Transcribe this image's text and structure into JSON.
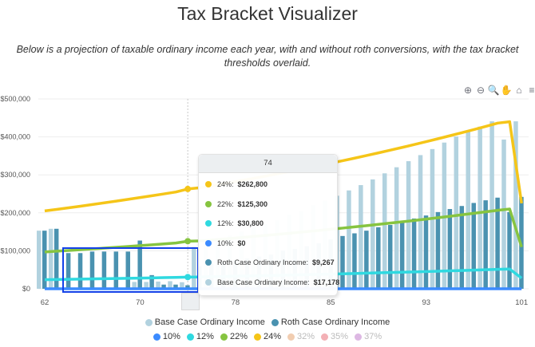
{
  "title": "Tax Bracket Visualizer",
  "subtitle": "Below is a projection of taxable ordinary income each year, with and without roth conversions, with the tax bracket thresholds overlaid.",
  "toolbar": [
    {
      "name": "zoom-in-icon",
      "glyph": "⊕"
    },
    {
      "name": "zoom-out-icon",
      "glyph": "⊖"
    },
    {
      "name": "selection-zoom-icon",
      "glyph": "🔍"
    },
    {
      "name": "pan-icon",
      "glyph": "✋"
    },
    {
      "name": "reset-home-icon",
      "glyph": "⌂"
    },
    {
      "name": "menu-icon",
      "glyph": "≡"
    }
  ],
  "chart_data": {
    "type": "bar+line",
    "ylim": [
      0,
      500000
    ],
    "yticks": [
      "$0",
      "$100,000",
      "$200,000",
      "$300,000",
      "$400,000",
      "$500,000"
    ],
    "ytick_values": [
      0,
      100000,
      200000,
      300000,
      400000,
      500000
    ],
    "xtick_labels": [
      {
        "index": 0,
        "label": "62"
      },
      {
        "index": 8,
        "label": "70"
      },
      {
        "index": 12,
        "label": "74"
      },
      {
        "index": 16,
        "label": "78"
      },
      {
        "index": 24,
        "label": "85"
      },
      {
        "index": 32,
        "label": "93"
      },
      {
        "index": 40,
        "label": "101"
      }
    ],
    "grid": true,
    "bar_series": [
      {
        "name": "Base Case Ordinary Income",
        "color": "#b2d2df",
        "values": [
          153000,
          158000,
          0,
          0,
          0,
          0,
          0,
          0,
          18000,
          18000,
          19000,
          20000,
          17178,
          110000,
          120000,
          130000,
          140000,
          150000,
          160000,
          170000,
          180000,
          195000,
          205000,
          220000,
          232000,
          245000,
          259000,
          273000,
          288000,
          304000,
          320000,
          336000,
          352000,
          368000,
          385000,
          401000,
          414000,
          427000,
          441000,
          393000,
          441000
        ]
      },
      {
        "name": "Roth Case Ordinary Income",
        "color": "#4a92b0",
        "values": [
          153000,
          158000,
          94000,
          94000,
          98000,
          98000,
          98000,
          98000,
          127000,
          36000,
          11000,
          11000,
          9267,
          60000,
          65000,
          70000,
          75000,
          80000,
          85000,
          90000,
          100000,
          105000,
          112000,
          120000,
          130000,
          139000,
          146000,
          153000,
          162000,
          168000,
          176000,
          185000,
          193000,
          202000,
          210000,
          218000,
          226000,
          233000,
          240000,
          202000,
          242000
        ]
      }
    ],
    "line_series": [
      {
        "name": "10%",
        "color": "#3b8bff",
        "visible": true,
        "values": [
          0,
          0,
          0,
          0,
          0,
          0,
          0,
          0,
          0,
          0,
          0,
          0,
          0,
          0,
          0,
          0,
          0,
          0,
          0,
          0,
          0,
          0,
          0,
          0,
          0,
          0,
          0,
          0,
          0,
          0,
          0,
          0,
          0,
          0,
          0,
          0,
          0,
          0,
          0,
          0,
          0
        ]
      },
      {
        "name": "12%",
        "color": "#2fd9e0",
        "visible": true,
        "values": [
          24000,
          24500,
          25000,
          25500,
          26000,
          26500,
          27000,
          27600,
          28100,
          28700,
          29300,
          29900,
          30800,
          31100,
          31700,
          32400,
          33000,
          33700,
          34400,
          35000,
          35700,
          36500,
          37200,
          37900,
          38700,
          39500,
          40300,
          41100,
          41900,
          42700,
          43600,
          44500,
          45300,
          46300,
          47200,
          48100,
          49100,
          50100,
          51100,
          52000,
          28000
        ]
      },
      {
        "name": "22%",
        "color": "#86c440",
        "visible": true,
        "values": [
          97000,
          98900,
          100900,
          102900,
          105000,
          107100,
          109200,
          111400,
          113600,
          115900,
          118200,
          120600,
          125300,
          126000,
          128500,
          131100,
          133700,
          136400,
          139100,
          141900,
          144700,
          147600,
          150600,
          153600,
          156700,
          159800,
          163000,
          166300,
          169600,
          173000,
          176400,
          179900,
          183500,
          187200,
          191000,
          194800,
          198700,
          202700,
          206700,
          210000,
          110000
        ]
      },
      {
        "name": "24%",
        "color": "#f5c518",
        "visible": true,
        "values": [
          205000,
          209100,
          213300,
          217500,
          221900,
          226300,
          230900,
          235500,
          240200,
          245000,
          249900,
          254900,
          262800,
          266000,
          271300,
          276700,
          282200,
          287800,
          293600,
          299500,
          305500,
          311600,
          317800,
          324200,
          330700,
          337300,
          344000,
          350900,
          357900,
          365100,
          372400,
          379800,
          387400,
          395200,
          403100,
          411100,
          419300,
          427700,
          436300,
          440000,
          225000
        ]
      },
      {
        "name": "32%",
        "color": "#f0c8a8",
        "visible": false
      },
      {
        "name": "35%",
        "color": "#f2a7ad",
        "visible": false
      },
      {
        "name": "37%",
        "color": "#d9b0e0",
        "visible": false
      }
    ],
    "hovered_index": 12
  },
  "tooltip": {
    "header": "74",
    "rows": [
      {
        "label": "24%:",
        "value": "$262,800",
        "color": "#f5c518"
      },
      {
        "label": "22%:",
        "value": "$125,300",
        "color": "#86c440"
      },
      {
        "label": "12%:",
        "value": "$30,800",
        "color": "#2fd9e0"
      },
      {
        "label": "10%:",
        "value": "$0",
        "color": "#3b8bff"
      },
      {
        "label": "Roth Case Ordinary Income:",
        "value": "$9,267",
        "color": "#4a92b0"
      },
      {
        "label": "Base Case Ordinary Income:",
        "value": "$17,178",
        "color": "#b2d2df"
      }
    ]
  }
}
